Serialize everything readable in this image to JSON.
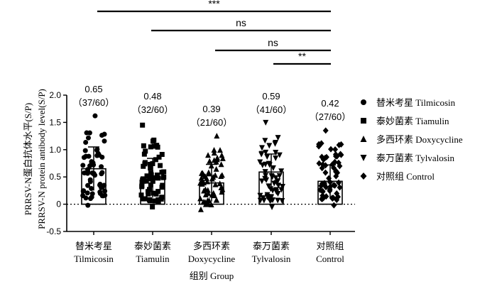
{
  "chart_data": {
    "type": "bar",
    "categories": [
      {
        "zh": "替米考星",
        "en": "Tilmicosin"
      },
      {
        "zh": "泰妙菌素",
        "en": "Tiamulin"
      },
      {
        "zh": "多西环素",
        "en": "Doxycycline"
      },
      {
        "zh": "泰万菌素",
        "en": "Tylvalosin"
      },
      {
        "zh": "对照组",
        "en": "Control"
      }
    ],
    "values": [
      0.65,
      0.48,
      0.39,
      0.59,
      0.42
    ],
    "value_labels": [
      "0.65",
      "0.48",
      "0.39",
      "0.59",
      "0.42"
    ],
    "count_labels": [
      "（37/60）",
      "（32/60）",
      "（21/60）",
      "（41/60）",
      "（27/60）"
    ],
    "error_sd": [
      0.4,
      0.36,
      0.34,
      0.33,
      0.3
    ],
    "point_ranges": [
      [
        -0.02,
        1.62
      ],
      [
        -0.05,
        1.45
      ],
      [
        -0.1,
        1.25
      ],
      [
        -0.05,
        1.5
      ],
      [
        -0.02,
        1.35
      ]
    ],
    "markers": [
      "circle",
      "square",
      "triangle-up",
      "triangle-down",
      "diamond"
    ],
    "ylabel": "PRRSV-N蛋白抗体水平(S/P)",
    "ylabel_en": "PRRSV-N protein antibody level(S/P)",
    "xlabel": "组别 Group",
    "ylim": [
      -0.5,
      2.0
    ],
    "yticks": [
      "-0.5",
      "0",
      "0.5",
      "1.0",
      "1.5",
      "2.0"
    ],
    "reference_line": 0,
    "legend": {
      "placement": "right",
      "entries": [
        {
          "marker": "circle",
          "label": "替米考星 Tilmicosin"
        },
        {
          "marker": "square",
          "label": "泰妙菌素 Tiamulin"
        },
        {
          "marker": "triangle-up",
          "label": "多西环素 Doxycycline"
        },
        {
          "marker": "triangle-down",
          "label": "泰万菌素 Tylvalosin"
        },
        {
          "marker": "diamond",
          "label": "对照组 Control"
        }
      ]
    },
    "significance": [
      {
        "from": 0,
        "to": 4,
        "label": "***"
      },
      {
        "from": 1,
        "to": 4,
        "label": "ns"
      },
      {
        "from": 2,
        "to": 4,
        "label": "ns"
      },
      {
        "from": 3,
        "to": 4,
        "label": "**"
      }
    ],
    "color": "#000000"
  }
}
